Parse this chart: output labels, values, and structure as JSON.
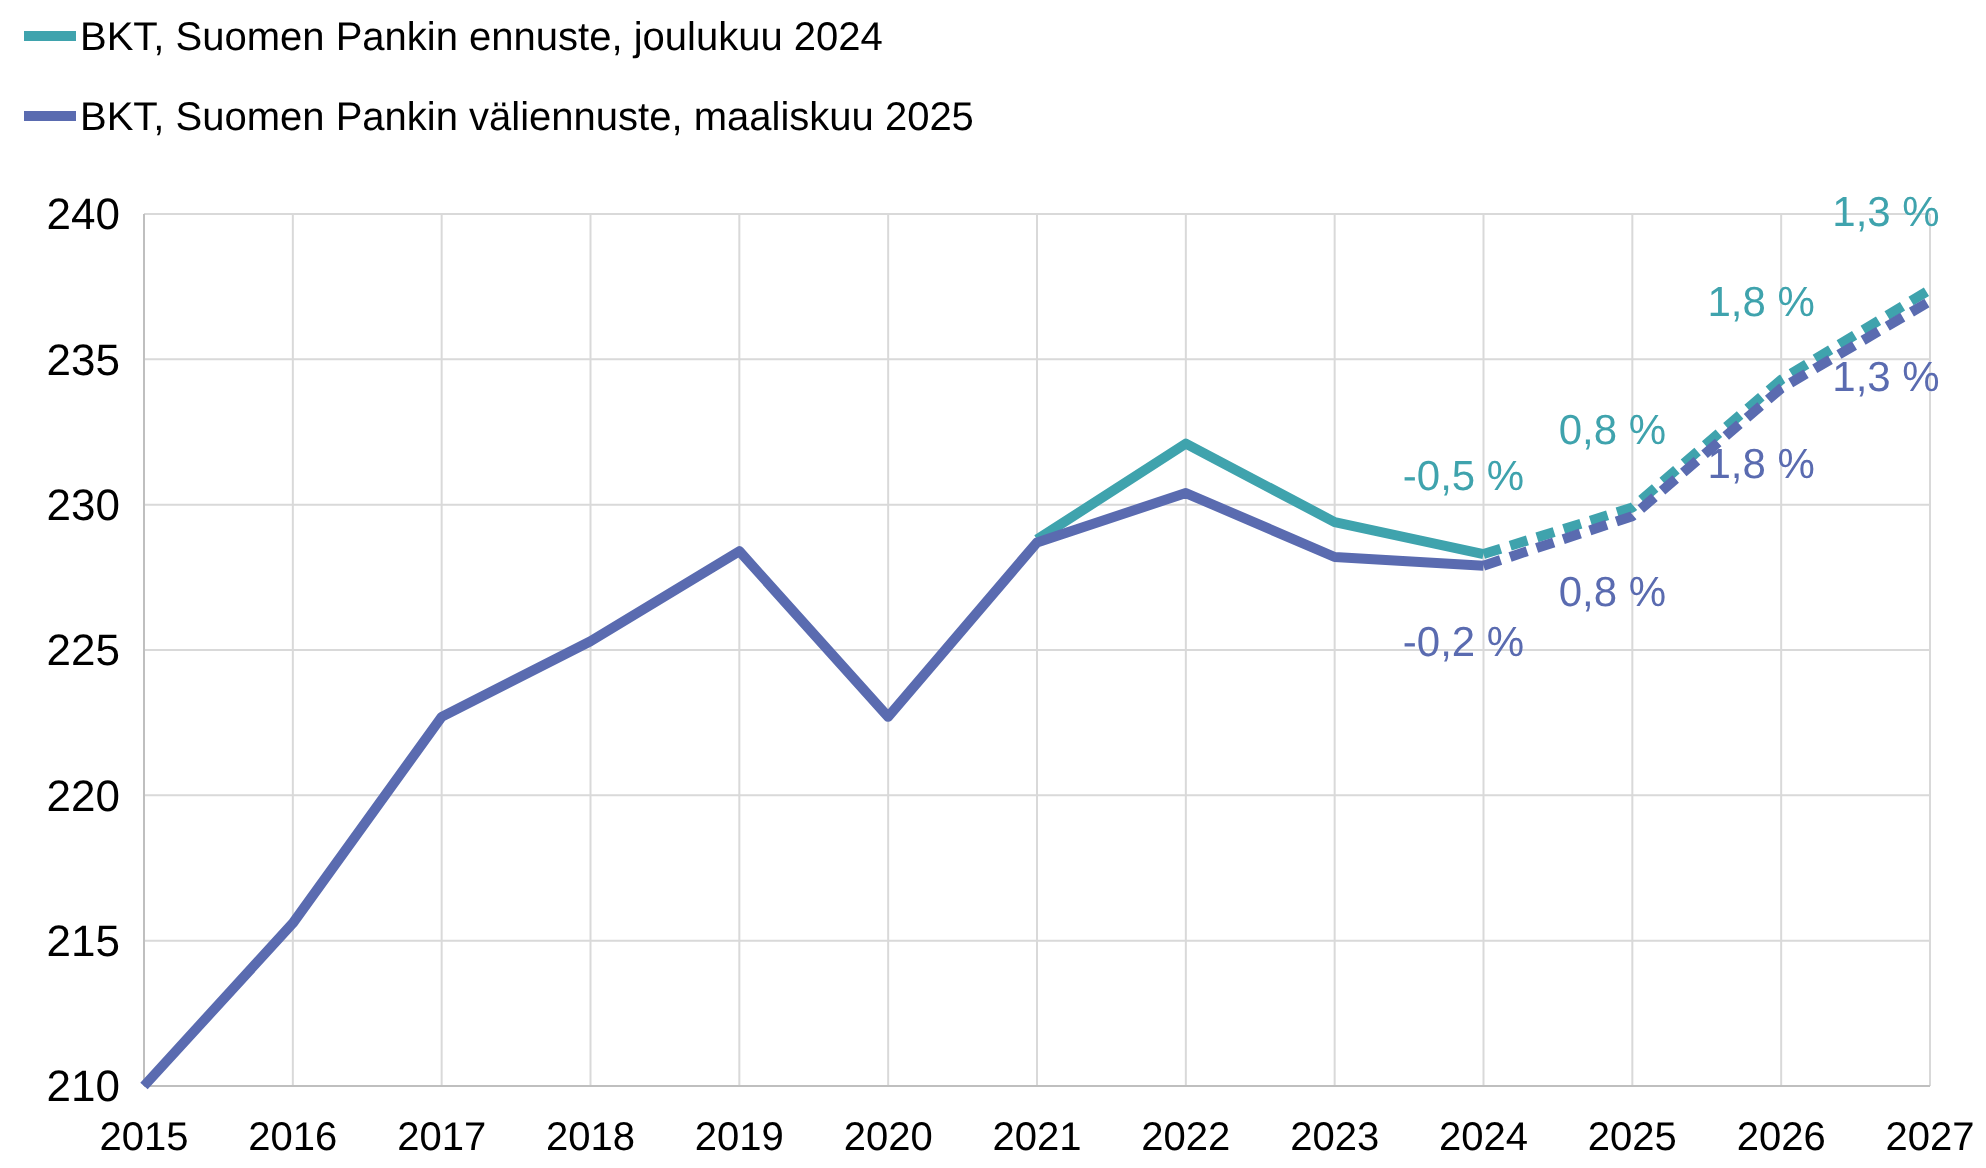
{
  "chart_data": {
    "type": "line",
    "categories": [
      "2015",
      "2016",
      "2017",
      "2018",
      "2019",
      "2020",
      "2021",
      "2022",
      "2023",
      "2024",
      "2025",
      "2026",
      "2027"
    ],
    "ylim": [
      210,
      240
    ],
    "yticks": [
      210,
      215,
      220,
      225,
      230,
      235,
      240
    ],
    "grid": true,
    "legend": "top left",
    "marker": "none",
    "series": [
      {
        "name": "BKT, Suomen Pankin ennuste, joulukuu 2024",
        "color": "#3fa3ad",
        "line_style": "solid",
        "values": [
          null,
          null,
          null,
          null,
          null,
          null,
          228.8,
          232.1,
          229.4,
          228.3,
          null,
          null,
          null
        ]
      },
      {
        "name": "BKT, Suomen Pankin väliennuste, maaliskuu 2025",
        "color": "#5a6bb0",
        "line_style": "solid",
        "values": [
          210,
          215.6,
          222.7,
          225.3,
          228.4,
          222.7,
          228.7,
          230.4,
          228.2,
          227.9,
          null,
          null,
          null
        ]
      },
      {
        "color": "#3fa3ad",
        "line_style": "dashed",
        "values": [
          null,
          null,
          null,
          null,
          null,
          null,
          null,
          null,
          null,
          228.3,
          229.9,
          234.3,
          237.4
        ]
      },
      {
        "color": "#5a6bb0",
        "line_style": "dashed",
        "values": [
          null,
          null,
          null,
          null,
          null,
          null,
          null,
          null,
          null,
          227.9,
          229.6,
          234.0,
          237.0
        ]
      }
    ],
    "annotations": [
      {
        "text": "-0,5 %",
        "x": "2024",
        "y": 228.3
      },
      {
        "text": "0,8 %",
        "x": "2025",
        "y": 229.9
      },
      {
        "text": "1,8 %",
        "x": "2026",
        "y": 234.3
      },
      {
        "text": "1,3 %",
        "x": "2027",
        "y": 237.4
      },
      {
        "text": "-0,2 %",
        "x": "2024",
        "y": 227.9
      },
      {
        "text": "0,8 %",
        "x": "2025",
        "y": 229.6
      },
      {
        "text": "1,8 %",
        "x": "2026",
        "y": 234.0
      },
      {
        "text": "1,3 %",
        "x": "2027",
        "y": 237.0
      }
    ]
  }
}
